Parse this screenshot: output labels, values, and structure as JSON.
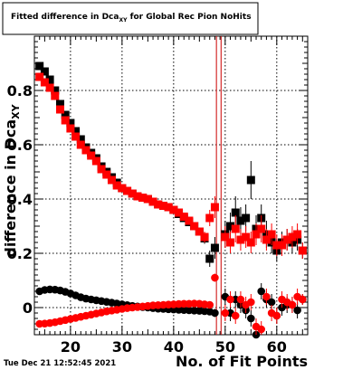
{
  "chart_data": {
    "type": "scatter",
    "title_parts": {
      "main": "Fitted difference in Dca",
      "subscript": "XY",
      "tail": " for Global Rec Pion NoHits"
    },
    "xlabel": "No. of Fit Points",
    "ylabel_parts": {
      "main": "difference in Dca",
      "subscript": "XY"
    },
    "timestamp": "Tue Dec 21 12:52:45 2021",
    "xlim": [
      13,
      66
    ],
    "ylim": [
      -0.1,
      1.0
    ],
    "x_ticks": [
      20,
      30,
      40,
      50,
      60
    ],
    "y_ticks": [
      0,
      0.2,
      0.4,
      0.6,
      0.8
    ],
    "y_tick_labels": [
      "0",
      "0.2",
      "0.4",
      "0.6",
      "0.8"
    ],
    "grid": true,
    "vertical_lines": [
      {
        "x": 48.3,
        "color": "#cc0000"
      },
      {
        "x": 49.2,
        "color": "#cc0000"
      }
    ],
    "series": [
      {
        "marker": "square",
        "color": "#000000",
        "x": [
          14,
          15,
          16,
          17,
          18,
          19,
          20,
          21,
          22,
          23,
          24,
          25,
          26,
          27,
          28,
          29,
          30,
          31,
          32,
          33,
          34,
          35,
          36,
          37,
          38,
          39,
          40,
          41,
          42,
          43,
          44,
          45,
          46,
          47,
          48,
          49,
          50,
          51,
          52,
          53,
          54,
          55,
          56,
          57,
          58,
          59,
          60,
          61,
          62,
          63,
          64,
          65
        ],
        "y": [
          0.89,
          0.87,
          0.84,
          0.8,
          0.75,
          0.71,
          0.68,
          0.65,
          0.62,
          0.59,
          0.57,
          0.55,
          0.52,
          0.5,
          0.48,
          0.46,
          0.44,
          0.43,
          0.42,
          0.41,
          0.405,
          0.4,
          0.39,
          0.38,
          0.375,
          0.37,
          0.36,
          0.345,
          0.33,
          0.315,
          0.3,
          0.28,
          0.255,
          0.18,
          0.22,
          null,
          0.27,
          0.3,
          0.35,
          0.32,
          0.33,
          0.47,
          0.29,
          0.33,
          0.27,
          0.24,
          0.21,
          0.24,
          0.25,
          0.24,
          0.25,
          0.21
        ],
        "yerr": [
          0.01,
          0.01,
          0.01,
          0.01,
          0.01,
          0.01,
          0.01,
          0.01,
          0.01,
          0.01,
          0.01,
          0.01,
          0.01,
          0.01,
          0.01,
          0.01,
          0.01,
          0.01,
          0.01,
          0.01,
          0.01,
          0.01,
          0.01,
          0.01,
          0.01,
          0.01,
          0.01,
          0.01,
          0.01,
          0.01,
          0.015,
          0.015,
          0.02,
          0.03,
          0.04,
          null,
          0.05,
          0.05,
          0.06,
          0.05,
          0.05,
          0.07,
          0.05,
          0.05,
          0.05,
          0.04,
          0.04,
          0.04,
          0.04,
          0.04,
          0.04,
          0.03
        ]
      },
      {
        "marker": "square",
        "color": "#ff0000",
        "x": [
          14,
          15,
          16,
          17,
          18,
          19,
          20,
          21,
          22,
          23,
          24,
          25,
          26,
          27,
          28,
          29,
          30,
          31,
          32,
          33,
          34,
          35,
          36,
          37,
          38,
          39,
          40,
          41,
          42,
          43,
          44,
          45,
          46,
          47,
          48,
          49,
          50,
          51,
          52,
          53,
          54,
          55,
          56,
          57,
          58,
          59,
          60,
          61,
          62,
          63,
          64,
          65
        ],
        "y": [
          0.85,
          0.83,
          0.81,
          0.78,
          0.73,
          0.69,
          0.66,
          0.63,
          0.6,
          0.58,
          0.56,
          0.54,
          0.51,
          0.49,
          0.47,
          0.45,
          0.44,
          0.43,
          0.42,
          0.41,
          0.405,
          0.4,
          0.39,
          0.38,
          0.375,
          0.37,
          0.36,
          0.35,
          0.335,
          0.32,
          0.3,
          0.28,
          0.26,
          0.33,
          0.37,
          null,
          0.26,
          0.24,
          0.29,
          0.25,
          0.26,
          0.24,
          0.27,
          0.29,
          0.25,
          0.27,
          0.23,
          0.23,
          0.25,
          0.26,
          0.27,
          0.21
        ],
        "yerr": [
          0.01,
          0.01,
          0.01,
          0.01,
          0.01,
          0.01,
          0.01,
          0.01,
          0.01,
          0.01,
          0.01,
          0.01,
          0.01,
          0.01,
          0.01,
          0.01,
          0.01,
          0.01,
          0.01,
          0.01,
          0.01,
          0.01,
          0.01,
          0.01,
          0.01,
          0.01,
          0.01,
          0.01,
          0.01,
          0.01,
          0.015,
          0.015,
          0.02,
          0.03,
          0.04,
          null,
          0.04,
          0.04,
          0.05,
          0.04,
          0.04,
          0.04,
          0.04,
          0.05,
          0.04,
          0.04,
          0.04,
          0.04,
          0.04,
          0.04,
          0.04,
          0.03
        ]
      },
      {
        "marker": "circle",
        "color": "#000000",
        "x": [
          14,
          15,
          16,
          17,
          18,
          19,
          20,
          21,
          22,
          23,
          24,
          25,
          26,
          27,
          28,
          29,
          30,
          31,
          32,
          33,
          34,
          35,
          36,
          37,
          38,
          39,
          40,
          41,
          42,
          43,
          44,
          45,
          46,
          47,
          48,
          49,
          50,
          51,
          52,
          53,
          54,
          55,
          56,
          57,
          58,
          59,
          60,
          61,
          62,
          63,
          64,
          65
        ],
        "y": [
          0.06,
          0.065,
          0.067,
          0.066,
          0.063,
          0.058,
          0.052,
          0.045,
          0.038,
          0.033,
          0.03,
          0.027,
          0.024,
          0.021,
          0.018,
          0.015,
          0.012,
          0.009,
          0.006,
          0.004,
          0.002,
          0.0,
          -0.002,
          -0.004,
          -0.005,
          -0.006,
          -0.007,
          -0.008,
          -0.009,
          -0.01,
          -0.011,
          -0.012,
          -0.013,
          -0.015,
          -0.02,
          null,
          0.04,
          -0.02,
          0.03,
          0.01,
          -0.01,
          -0.04,
          -0.1,
          0.06,
          0.03,
          0.02,
          -0.03,
          0.0,
          0.01,
          0.01,
          -0.01,
          0.03
        ],
        "yerr": [
          0.005,
          0.005,
          0.005,
          0.005,
          0.005,
          0.005,
          0.005,
          0.005,
          0.005,
          0.005,
          0.005,
          0.005,
          0.005,
          0.005,
          0.005,
          0.005,
          0.005,
          0.005,
          0.005,
          0.005,
          0.005,
          0.005,
          0.005,
          0.005,
          0.005,
          0.005,
          0.005,
          0.005,
          0.005,
          0.005,
          0.006,
          0.006,
          0.008,
          0.01,
          0.015,
          null,
          0.03,
          0.03,
          0.03,
          0.03,
          0.03,
          0.03,
          0.03,
          0.03,
          0.03,
          0.03,
          0.03,
          0.03,
          0.03,
          0.03,
          0.03,
          0.02
        ]
      },
      {
        "marker": "circle",
        "color": "#ff0000",
        "x": [
          14,
          15,
          16,
          17,
          18,
          19,
          20,
          21,
          22,
          23,
          24,
          25,
          26,
          27,
          28,
          29,
          30,
          31,
          32,
          33,
          34,
          35,
          36,
          37,
          38,
          39,
          40,
          41,
          42,
          43,
          44,
          45,
          46,
          47,
          48,
          49,
          50,
          51,
          52,
          53,
          54,
          55,
          56,
          57,
          58,
          59,
          60,
          61,
          62,
          63,
          64,
          65
        ],
        "y": [
          -0.06,
          -0.059,
          -0.057,
          -0.054,
          -0.05,
          -0.046,
          -0.042,
          -0.038,
          -0.034,
          -0.03,
          -0.026,
          -0.022,
          -0.018,
          -0.014,
          -0.011,
          -0.008,
          -0.005,
          -0.002,
          0.0,
          0.002,
          0.004,
          0.006,
          0.008,
          0.009,
          0.01,
          0.011,
          0.012,
          0.013,
          0.014,
          0.014,
          0.015,
          0.014,
          0.012,
          0.01,
          0.11,
          null,
          -0.02,
          0.03,
          -0.03,
          0.03,
          0.01,
          0.02,
          -0.07,
          -0.08,
          0.04,
          -0.02,
          -0.03,
          0.03,
          0.02,
          0.01,
          0.04,
          0.03
        ],
        "yerr": [
          0.005,
          0.005,
          0.005,
          0.005,
          0.005,
          0.005,
          0.005,
          0.005,
          0.005,
          0.005,
          0.005,
          0.005,
          0.005,
          0.005,
          0.005,
          0.005,
          0.005,
          0.005,
          0.005,
          0.005,
          0.005,
          0.005,
          0.005,
          0.005,
          0.005,
          0.005,
          0.005,
          0.005,
          0.005,
          0.005,
          0.006,
          0.006,
          0.008,
          0.01,
          0.015,
          null,
          0.03,
          0.03,
          0.03,
          0.03,
          0.03,
          0.03,
          0.03,
          0.03,
          0.03,
          0.03,
          0.03,
          0.03,
          0.03,
          0.03,
          0.03,
          0.02
        ]
      }
    ]
  }
}
